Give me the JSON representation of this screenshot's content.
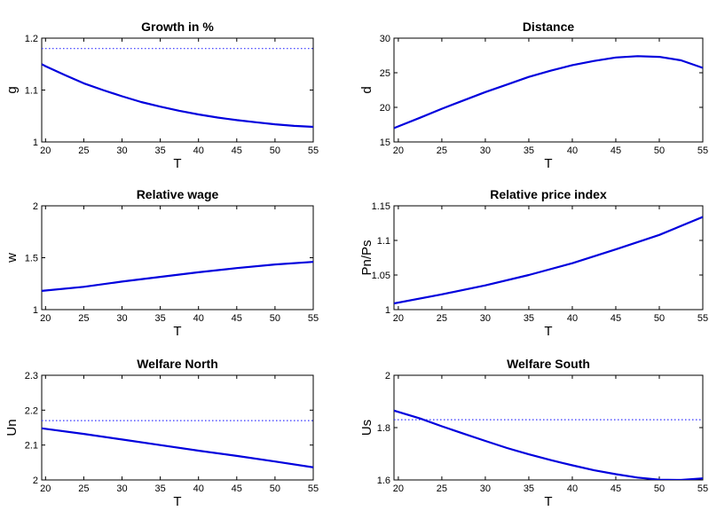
{
  "chart_data": [
    {
      "type": "line",
      "title": "Growth in %",
      "xlabel": "T",
      "ylabel": "g",
      "xlim": [
        19.5,
        55
      ],
      "ylim": [
        1,
        1.2
      ],
      "xticks": [
        20,
        25,
        30,
        35,
        40,
        45,
        50,
        55
      ],
      "yticks": [
        1,
        1.1,
        1.2
      ],
      "ytick_labels": [
        "1",
        "1.1",
        "1.2"
      ],
      "grid": false,
      "reference_line": {
        "y": 1.18,
        "style": "dotted",
        "color": "#3333ff"
      },
      "series": [
        {
          "color": "#0000dd",
          "x": [
            19.5,
            20,
            22.5,
            25,
            27.5,
            30,
            32.5,
            35,
            37.5,
            40,
            42.5,
            45,
            47.5,
            50,
            52.5,
            55
          ],
          "y": [
            1.15,
            1.146,
            1.129,
            1.113,
            1.1,
            1.088,
            1.077,
            1.068,
            1.06,
            1.053,
            1.047,
            1.042,
            1.038,
            1.034,
            1.031,
            1.029
          ]
        }
      ]
    },
    {
      "type": "line",
      "title": "Distance",
      "xlabel": "T",
      "ylabel": "d",
      "xlim": [
        19.5,
        55
      ],
      "ylim": [
        15,
        30
      ],
      "xticks": [
        20,
        25,
        30,
        35,
        40,
        45,
        50,
        55
      ],
      "yticks": [
        15,
        20,
        25,
        30
      ],
      "ytick_labels": [
        "15",
        "20",
        "25",
        "30"
      ],
      "grid": false,
      "series": [
        {
          "color": "#0000dd",
          "x": [
            19.5,
            22.5,
            25,
            27.5,
            30,
            32.5,
            35,
            37.5,
            40,
            42.5,
            45,
            47.5,
            50,
            52.5,
            55
          ],
          "y": [
            17,
            18.5,
            19.8,
            21,
            22.2,
            23.3,
            24.4,
            25.3,
            26.1,
            26.7,
            27.2,
            27.4,
            27.3,
            26.8,
            25.7
          ]
        }
      ]
    },
    {
      "type": "line",
      "title": "Relative wage",
      "xlabel": "T",
      "ylabel": "w",
      "xlim": [
        19.5,
        55
      ],
      "ylim": [
        1,
        2
      ],
      "xticks": [
        20,
        25,
        30,
        35,
        40,
        45,
        50,
        55
      ],
      "yticks": [
        1,
        1.5,
        2
      ],
      "ytick_labels": [
        "1",
        "1.5",
        "2"
      ],
      "grid": false,
      "series": [
        {
          "color": "#0000dd",
          "x": [
            19.5,
            25,
            30,
            35,
            40,
            45,
            50,
            55
          ],
          "y": [
            1.18,
            1.22,
            1.27,
            1.315,
            1.36,
            1.4,
            1.435,
            1.46
          ]
        }
      ]
    },
    {
      "type": "line",
      "title": "Relative price index",
      "xlabel": "T",
      "ylabel": "Pn/Ps",
      "xlim": [
        19.5,
        55
      ],
      "ylim": [
        1,
        1.15
      ],
      "xticks": [
        20,
        25,
        30,
        35,
        40,
        45,
        50,
        55
      ],
      "yticks": [
        1,
        1.05,
        1.1,
        1.15
      ],
      "ytick_labels": [
        "1",
        "1.05",
        "1.1",
        "1.15"
      ],
      "grid": false,
      "series": [
        {
          "color": "#0000dd",
          "x": [
            19.5,
            25,
            30,
            35,
            40,
            45,
            50,
            55
          ],
          "y": [
            1.009,
            1.022,
            1.035,
            1.05,
            1.067,
            1.087,
            1.108,
            1.134
          ]
        }
      ]
    },
    {
      "type": "line",
      "title": "Welfare North",
      "xlabel": "T",
      "ylabel": "Un",
      "xlim": [
        19.5,
        55
      ],
      "ylim": [
        2,
        2.3
      ],
      "xticks": [
        20,
        25,
        30,
        35,
        40,
        45,
        50,
        55
      ],
      "yticks": [
        2,
        2.1,
        2.2,
        2.3
      ],
      "ytick_labels": [
        "2",
        "2.1",
        "2.2",
        "2.3"
      ],
      "grid": false,
      "reference_line": {
        "y": 2.17,
        "style": "dotted",
        "color": "#3333ff"
      },
      "series": [
        {
          "color": "#0000dd",
          "x": [
            19.5,
            25,
            30,
            35,
            40,
            45,
            50,
            55
          ],
          "y": [
            2.148,
            2.132,
            2.116,
            2.1,
            2.084,
            2.069,
            2.053,
            2.036
          ]
        }
      ]
    },
    {
      "type": "line",
      "title": "Welfare South",
      "xlabel": "T",
      "ylabel": "Us",
      "xlim": [
        19.5,
        55
      ],
      "ylim": [
        1.6,
        2
      ],
      "xticks": [
        20,
        25,
        30,
        35,
        40,
        45,
        50,
        55
      ],
      "yticks": [
        1.6,
        1.8,
        2
      ],
      "ytick_labels": [
        "1.6",
        "1.8",
        "2"
      ],
      "grid": false,
      "reference_line": {
        "y": 1.83,
        "style": "dotted",
        "color": "#3333ff"
      },
      "series": [
        {
          "color": "#0000dd",
          "x": [
            19.5,
            22.5,
            25,
            27.5,
            30,
            32.5,
            35,
            37.5,
            40,
            42.5,
            45,
            47.5,
            50,
            52.5,
            55
          ],
          "y": [
            1.865,
            1.835,
            1.805,
            1.777,
            1.749,
            1.722,
            1.698,
            1.676,
            1.656,
            1.637,
            1.622,
            1.609,
            1.601,
            1.6,
            1.606
          ]
        }
      ]
    }
  ]
}
